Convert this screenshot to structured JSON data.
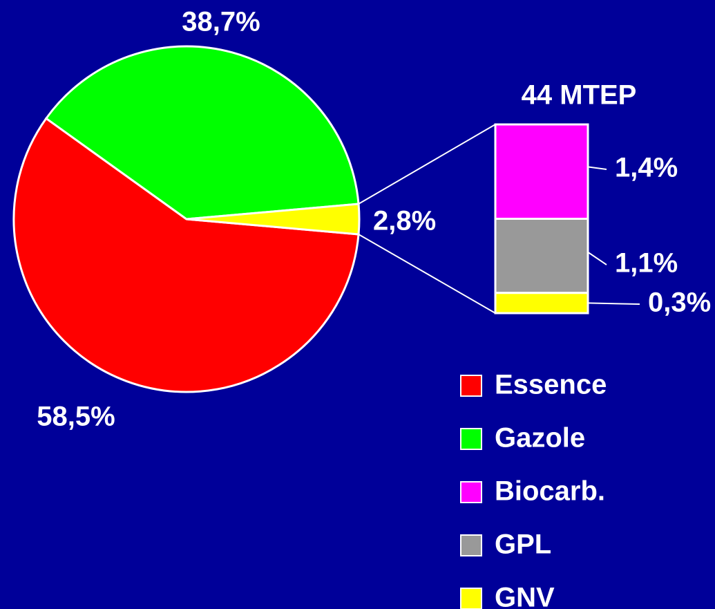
{
  "chart_data": {
    "type": "bar-of-pie",
    "pie": {
      "values": [
        58.5,
        38.7,
        2.8
      ],
      "value_labels": [
        "58,5%",
        "38,7%",
        "2,8%"
      ],
      "colors": [
        "#ff0000",
        "#00ff00",
        "#ffff00"
      ]
    },
    "bar": {
      "title": "44 MTEP",
      "values": [
        1.4,
        1.1,
        0.3
      ],
      "value_labels": [
        "1,4%",
        "1,1%",
        "0,3%"
      ],
      "colors": [
        "#ff00ff",
        "#999999",
        "#ffff00"
      ]
    },
    "legend": [
      {
        "name": "Essence",
        "color": "#ff0000"
      },
      {
        "name": "Gazole",
        "color": "#00ff00"
      },
      {
        "name": "Biocarb.",
        "color": "#ff00ff"
      },
      {
        "name": "GPL",
        "color": "#999999"
      },
      {
        "name": "GNV",
        "color": "#ffff00"
      }
    ]
  }
}
